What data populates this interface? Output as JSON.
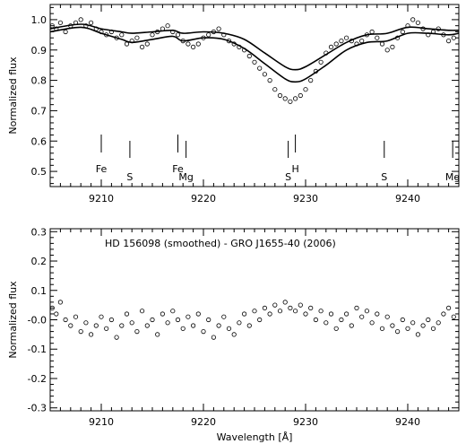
{
  "chart_data": [
    {
      "type": "scatter",
      "ylabel": "Normalized flux",
      "xlabel": "",
      "xlim": [
        9205,
        9245
      ],
      "ylim": [
        0.45,
        1.05
      ],
      "xticks": [
        9210,
        9220,
        9230,
        9240
      ],
      "yticks": [
        0.5,
        0.6,
        0.7,
        0.8,
        0.9,
        1.0
      ],
      "ytick_labels": [
        "0.5",
        "0.6",
        "0.7",
        "0.8",
        "0.9",
        "1.0"
      ],
      "series": [
        {
          "points": [
            [
              9205.2,
              0.98
            ],
            [
              9205.6,
              0.97
            ],
            [
              9206.0,
              0.99
            ],
            [
              9206.5,
              0.96
            ],
            [
              9207.0,
              0.98
            ],
            [
              9207.5,
              0.99
            ],
            [
              9208.0,
              1.0
            ],
            [
              9208.5,
              0.98
            ],
            [
              9209.0,
              0.99
            ],
            [
              9209.5,
              0.97
            ],
            [
              9210.0,
              0.96
            ],
            [
              9210.5,
              0.95
            ],
            [
              9211.0,
              0.96
            ],
            [
              9211.5,
              0.94
            ],
            [
              9212.0,
              0.95
            ],
            [
              9212.5,
              0.92
            ],
            [
              9213.0,
              0.93
            ],
            [
              9213.5,
              0.94
            ],
            [
              9214.0,
              0.91
            ],
            [
              9214.5,
              0.92
            ],
            [
              9215.0,
              0.95
            ],
            [
              9215.5,
              0.96
            ],
            [
              9216.0,
              0.97
            ],
            [
              9216.5,
              0.98
            ],
            [
              9217.0,
              0.96
            ],
            [
              9217.5,
              0.95
            ],
            [
              9218.0,
              0.93
            ],
            [
              9218.5,
              0.92
            ],
            [
              9219.0,
              0.91
            ],
            [
              9219.5,
              0.92
            ],
            [
              9220.0,
              0.94
            ],
            [
              9220.5,
              0.95
            ],
            [
              9221.0,
              0.96
            ],
            [
              9221.5,
              0.97
            ],
            [
              9222.0,
              0.95
            ],
            [
              9222.5,
              0.93
            ],
            [
              9223.0,
              0.92
            ],
            [
              9223.5,
              0.91
            ],
            [
              9224.0,
              0.9
            ],
            [
              9224.5,
              0.88
            ],
            [
              9225.0,
              0.86
            ],
            [
              9225.5,
              0.84
            ],
            [
              9226.0,
              0.82
            ],
            [
              9226.5,
              0.8
            ],
            [
              9227.0,
              0.77
            ],
            [
              9227.5,
              0.75
            ],
            [
              9228.0,
              0.74
            ],
            [
              9228.5,
              0.73
            ],
            [
              9229.0,
              0.74
            ],
            [
              9229.5,
              0.75
            ],
            [
              9230.0,
              0.77
            ],
            [
              9230.5,
              0.8
            ],
            [
              9231.0,
              0.83
            ],
            [
              9231.5,
              0.86
            ],
            [
              9232.0,
              0.89
            ],
            [
              9232.5,
              0.91
            ],
            [
              9233.0,
              0.92
            ],
            [
              9233.5,
              0.93
            ],
            [
              9234.0,
              0.94
            ],
            [
              9234.5,
              0.93
            ],
            [
              9235.0,
              0.92
            ],
            [
              9235.5,
              0.93
            ],
            [
              9236.0,
              0.95
            ],
            [
              9236.5,
              0.96
            ],
            [
              9237.0,
              0.94
            ],
            [
              9237.5,
              0.92
            ],
            [
              9238.0,
              0.9
            ],
            [
              9238.5,
              0.91
            ],
            [
              9239.0,
              0.94
            ],
            [
              9239.5,
              0.96
            ],
            [
              9240.0,
              0.98
            ],
            [
              9240.5,
              1.0
            ],
            [
              9241.0,
              0.99
            ],
            [
              9241.5,
              0.97
            ],
            [
              9242.0,
              0.95
            ],
            [
              9242.5,
              0.96
            ],
            [
              9243.0,
              0.97
            ],
            [
              9243.5,
              0.95
            ],
            [
              9244.0,
              0.93
            ],
            [
              9244.5,
              0.94
            ]
          ]
        }
      ],
      "model_curves": [
        {
          "x": [
            9205,
            9208,
            9210,
            9212,
            9213,
            9215,
            9217,
            9218,
            9220,
            9222,
            9224,
            9226,
            9228,
            9229,
            9230,
            9232,
            9234,
            9236,
            9238,
            9240,
            9242,
            9244,
            9245
          ],
          "y": [
            0.97,
            0.985,
            0.97,
            0.96,
            0.955,
            0.96,
            0.965,
            0.955,
            0.96,
            0.955,
            0.935,
            0.89,
            0.845,
            0.835,
            0.845,
            0.885,
            0.925,
            0.95,
            0.955,
            0.975,
            0.97,
            0.965,
            0.965
          ]
        },
        {
          "x": [
            9205,
            9208,
            9210,
            9212,
            9213,
            9215,
            9217,
            9218,
            9220,
            9222,
            9224,
            9226,
            9228,
            9229,
            9230,
            9232,
            9234,
            9236,
            9238,
            9240,
            9242,
            9244,
            9245
          ],
          "y": [
            0.96,
            0.975,
            0.955,
            0.935,
            0.925,
            0.935,
            0.945,
            0.93,
            0.94,
            0.935,
            0.905,
            0.855,
            0.805,
            0.795,
            0.805,
            0.85,
            0.9,
            0.925,
            0.93,
            0.955,
            0.955,
            0.95,
            0.955
          ]
        }
      ],
      "line_markers": [
        {
          "label": "Fe",
          "x": 9210.0,
          "row": 1
        },
        {
          "label": "S",
          "x": 9212.8,
          "row": 2
        },
        {
          "label": "Fe",
          "x": 9217.5,
          "row": 1
        },
        {
          "label": "Mg",
          "x": 9218.3,
          "row": 2
        },
        {
          "label": "S",
          "x": 9228.3,
          "row": 2
        },
        {
          "label": "H",
          "x": 9229.0,
          "row": 1
        },
        {
          "label": "S",
          "x": 9237.7,
          "row": 2
        },
        {
          "label": "Mg",
          "x": 9244.4,
          "row": 2
        }
      ]
    },
    {
      "type": "scatter",
      "ylabel": "Normalized flux",
      "xlabel": "Wavelength [Å]",
      "annotation": "HD 156098 (smoothed) - GRO J1655-40 (2006)",
      "xlim": [
        9205,
        9245
      ],
      "ylim": [
        -0.31,
        0.31
      ],
      "xticks": [
        9210,
        9220,
        9230,
        9240
      ],
      "yticks": [
        -0.3,
        -0.2,
        -0.1,
        0.0,
        0.1,
        0.2,
        0.3
      ],
      "ytick_labels": [
        "-0.3",
        "-0.2",
        "-0.1",
        "-0.0",
        "0.1",
        "0.2",
        "0.3"
      ],
      "series": [
        {
          "points": [
            [
              9205.2,
              0.04
            ],
            [
              9205.6,
              0.02
            ],
            [
              9206.0,
              0.06
            ],
            [
              9206.5,
              0.0
            ],
            [
              9207.0,
              -0.02
            ],
            [
              9207.5,
              0.01
            ],
            [
              9208.0,
              -0.04
            ],
            [
              9208.5,
              -0.01
            ],
            [
              9209.0,
              -0.05
            ],
            [
              9209.5,
              -0.02
            ],
            [
              9210.0,
              0.01
            ],
            [
              9210.5,
              -0.03
            ],
            [
              9211.0,
              0.0
            ],
            [
              9211.5,
              -0.06
            ],
            [
              9212.0,
              -0.02
            ],
            [
              9212.5,
              0.02
            ],
            [
              9213.0,
              -0.01
            ],
            [
              9213.5,
              -0.04
            ],
            [
              9214.0,
              0.03
            ],
            [
              9214.5,
              -0.02
            ],
            [
              9215.0,
              0.0
            ],
            [
              9215.5,
              -0.05
            ],
            [
              9216.0,
              0.02
            ],
            [
              9216.5,
              -0.01
            ],
            [
              9217.0,
              0.03
            ],
            [
              9217.5,
              0.0
            ],
            [
              9218.0,
              -0.03
            ],
            [
              9218.5,
              0.01
            ],
            [
              9219.0,
              -0.02
            ],
            [
              9219.5,
              0.02
            ],
            [
              9220.0,
              -0.04
            ],
            [
              9220.5,
              0.0
            ],
            [
              9221.0,
              -0.06
            ],
            [
              9221.5,
              -0.02
            ],
            [
              9222.0,
              0.01
            ],
            [
              9222.5,
              -0.03
            ],
            [
              9223.0,
              -0.05
            ],
            [
              9223.5,
              -0.01
            ],
            [
              9224.0,
              0.02
            ],
            [
              9224.5,
              -0.02
            ],
            [
              9225.0,
              0.03
            ],
            [
              9225.5,
              0.0
            ],
            [
              9226.0,
              0.04
            ],
            [
              9226.5,
              0.02
            ],
            [
              9227.0,
              0.05
            ],
            [
              9227.5,
              0.03
            ],
            [
              9228.0,
              0.06
            ],
            [
              9228.5,
              0.04
            ],
            [
              9229.0,
              0.03
            ],
            [
              9229.5,
              0.05
            ],
            [
              9230.0,
              0.02
            ],
            [
              9230.5,
              0.04
            ],
            [
              9231.0,
              0.0
            ],
            [
              9231.5,
              0.03
            ],
            [
              9232.0,
              -0.01
            ],
            [
              9232.5,
              0.02
            ],
            [
              9233.0,
              -0.03
            ],
            [
              9233.5,
              0.0
            ],
            [
              9234.0,
              0.02
            ],
            [
              9234.5,
              -0.02
            ],
            [
              9235.0,
              0.04
            ],
            [
              9235.5,
              0.01
            ],
            [
              9236.0,
              0.03
            ],
            [
              9236.5,
              -0.01
            ],
            [
              9237.0,
              0.02
            ],
            [
              9237.5,
              -0.03
            ],
            [
              9238.0,
              0.01
            ],
            [
              9238.5,
              -0.02
            ],
            [
              9239.0,
              -0.04
            ],
            [
              9239.5,
              0.0
            ],
            [
              9240.0,
              -0.03
            ],
            [
              9240.5,
              -0.01
            ],
            [
              9241.0,
              -0.05
            ],
            [
              9241.5,
              -0.02
            ],
            [
              9242.0,
              0.0
            ],
            [
              9242.5,
              -0.03
            ],
            [
              9243.0,
              -0.01
            ],
            [
              9243.5,
              0.02
            ],
            [
              9244.0,
              0.04
            ],
            [
              9244.5,
              0.01
            ]
          ]
        }
      ]
    }
  ]
}
